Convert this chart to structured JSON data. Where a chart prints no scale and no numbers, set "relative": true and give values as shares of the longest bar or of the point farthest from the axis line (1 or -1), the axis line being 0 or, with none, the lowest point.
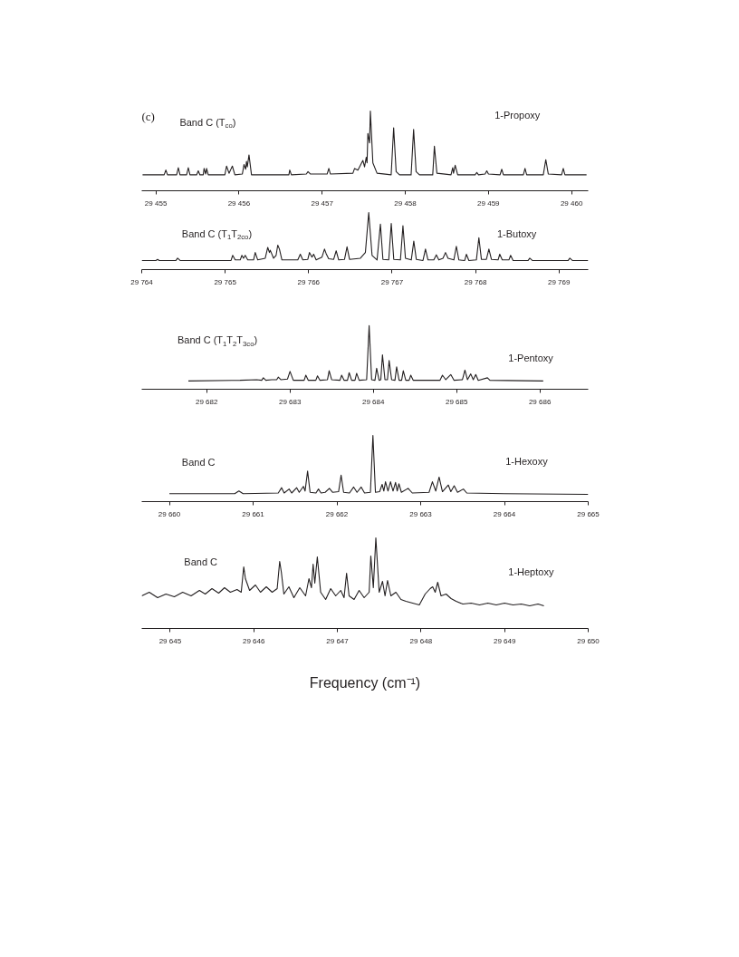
{
  "chart_data": [
    {
      "type": "line",
      "relative": true,
      "annotations": [
        "(c)",
        "Band C (T$_{co}$)"
      ],
      "xlim": [
        29454.83,
        29460.2
      ],
      "xticks": [
        {
          "value": 29455,
          "label": "29 455"
        },
        {
          "value": 29456,
          "label": "29 456"
        },
        {
          "value": 29457,
          "label": "29 457"
        },
        {
          "value": 29458,
          "label": "29 458"
        },
        {
          "value": 29459,
          "label": "29 459"
        },
        {
          "value": 29460,
          "label": "29 460"
        }
      ],
      "x": [
        29454.84,
        29455.1,
        29455.12,
        29455.14,
        29455.25,
        29455.27,
        29455.29,
        29455.37,
        29455.39,
        29455.41,
        29455.49,
        29455.51,
        29455.53,
        29455.57,
        29455.58,
        29455.6,
        29455.61,
        29455.63,
        29455.83,
        29455.85,
        29455.88,
        29455.92,
        29455.95,
        29456.04,
        29456.06,
        29456.08,
        29456.09,
        29456.1,
        29456.12,
        29456.15,
        29456.6,
        29456.61,
        29456.63,
        29456.81,
        29456.83,
        29456.86,
        29457.06,
        29457.08,
        29457.1,
        29457.37,
        29457.39,
        29457.43,
        29457.49,
        29457.51,
        29457.53,
        29457.54,
        29457.55,
        29457.57,
        29457.58,
        29457.61,
        29457.66,
        29457.83,
        29457.86,
        29457.89,
        29457.93,
        29458.07,
        29458.1,
        29458.13,
        29458.17,
        29458.33,
        29458.35,
        29458.38,
        29458.55,
        29458.57,
        29458.58,
        29458.6,
        29458.63,
        29458.84,
        29458.86,
        29458.88,
        29458.96,
        29458.98,
        29459.0,
        29459.14,
        29459.16,
        29459.18,
        29459.42,
        29459.44,
        29459.46,
        29459.66,
        29459.69,
        29459.72,
        29459.88,
        29459.9,
        29459.92,
        29460.18
      ],
      "series": [
        {
          "name": "1-Propoxy",
          "color": "#231f20",
          "values": [
            0.2,
            0.2,
            0.26,
            0.2,
            0.2,
            0.29,
            0.2,
            0.2,
            0.29,
            0.2,
            0.2,
            0.25,
            0.2,
            0.2,
            0.28,
            0.21,
            0.28,
            0.2,
            0.2,
            0.31,
            0.22,
            0.31,
            0.2,
            0.21,
            0.33,
            0.27,
            0.37,
            0.3,
            0.45,
            0.2,
            0.2,
            0.26,
            0.2,
            0.21,
            0.24,
            0.21,
            0.21,
            0.28,
            0.21,
            0.22,
            0.28,
            0.26,
            0.38,
            0.3,
            0.42,
            0.35,
            0.72,
            0.6,
            1.0,
            0.35,
            0.22,
            0.2,
            0.79,
            0.24,
            0.2,
            0.2,
            0.77,
            0.24,
            0.2,
            0.2,
            0.56,
            0.22,
            0.2,
            0.29,
            0.22,
            0.32,
            0.2,
            0.2,
            0.23,
            0.2,
            0.21,
            0.25,
            0.21,
            0.2,
            0.27,
            0.2,
            0.2,
            0.28,
            0.2,
            0.2,
            0.39,
            0.21,
            0.2,
            0.28,
            0.2,
            0.2
          ]
        }
      ]
    },
    {
      "type": "line",
      "relative": true,
      "annotations": [
        "Band C (T$_{1}$T$_{2co}$)"
      ],
      "xlim": [
        29764,
        29769.35
      ],
      "xticks": [
        {
          "value": 29764,
          "label": "29 764"
        },
        {
          "value": 29765,
          "label": "29 765"
        },
        {
          "value": 29766,
          "label": "29 766"
        },
        {
          "value": 29767,
          "label": "29 767"
        },
        {
          "value": 29768,
          "label": "29 768"
        },
        {
          "value": 29769,
          "label": "29 769"
        }
      ],
      "x": [
        29764.0,
        29764.17,
        29764.19,
        29764.21,
        29764.41,
        29764.43,
        29764.46,
        29764.8,
        29765.07,
        29765.09,
        29765.12,
        29765.18,
        29765.2,
        29765.22,
        29765.24,
        29765.27,
        29765.34,
        29765.36,
        29765.39,
        29765.48,
        29765.51,
        29765.53,
        29765.54,
        29765.58,
        29765.61,
        29765.63,
        29765.65,
        29765.68,
        29765.87,
        29765.9,
        29765.93,
        29765.99,
        29766.01,
        29766.04,
        29766.06,
        29766.09,
        29766.16,
        29766.19,
        29766.21,
        29766.24,
        29766.3,
        29766.33,
        29766.36,
        29766.43,
        29766.46,
        29766.49,
        29766.62,
        29766.68,
        29766.72,
        29766.76,
        29766.82,
        29766.86,
        29766.89,
        29766.96,
        29766.99,
        29767.02,
        29767.1,
        29767.13,
        29767.16,
        29767.23,
        29767.26,
        29767.29,
        29767.37,
        29767.4,
        29767.43,
        29767.5,
        29767.53,
        29767.56,
        29767.61,
        29767.64,
        29767.67,
        29767.74,
        29767.77,
        29767.8,
        29767.87,
        29767.89,
        29767.92,
        29768.01,
        29768.04,
        29768.07,
        29768.13,
        29768.16,
        29768.19,
        29768.27,
        29768.29,
        29768.32,
        29768.4,
        29768.42,
        29768.45,
        29768.63,
        29768.65,
        29768.68,
        29769.11,
        29769.13,
        29769.16,
        29769.35
      ],
      "series": [
        {
          "name": "1-Butoxy",
          "color": "#231f20",
          "values": [
            0.16,
            0.16,
            0.18,
            0.16,
            0.16,
            0.2,
            0.16,
            0.16,
            0.16,
            0.25,
            0.17,
            0.17,
            0.25,
            0.2,
            0.25,
            0.17,
            0.17,
            0.3,
            0.17,
            0.2,
            0.39,
            0.3,
            0.34,
            0.2,
            0.25,
            0.43,
            0.36,
            0.17,
            0.17,
            0.27,
            0.17,
            0.18,
            0.3,
            0.22,
            0.27,
            0.17,
            0.22,
            0.36,
            0.28,
            0.19,
            0.18,
            0.33,
            0.17,
            0.18,
            0.4,
            0.18,
            0.2,
            0.3,
            1.0,
            0.25,
            0.17,
            0.8,
            0.18,
            0.17,
            0.81,
            0.18,
            0.17,
            0.77,
            0.2,
            0.17,
            0.5,
            0.18,
            0.16,
            0.36,
            0.17,
            0.17,
            0.26,
            0.17,
            0.2,
            0.3,
            0.2,
            0.17,
            0.41,
            0.17,
            0.16,
            0.27,
            0.16,
            0.17,
            0.56,
            0.18,
            0.18,
            0.36,
            0.18,
            0.17,
            0.27,
            0.17,
            0.17,
            0.25,
            0.16,
            0.16,
            0.2,
            0.16,
            0.16,
            0.2,
            0.16,
            0.16
          ]
        }
      ]
    },
    {
      "type": "line",
      "relative": true,
      "annotations": [
        "Band C (T$_{1}$T$_{2}$T$_{3co}$)"
      ],
      "xlim": [
        29681.22,
        29686.58
      ],
      "xticks": [
        {
          "value": 29682,
          "label": "29 682"
        },
        {
          "value": 29683,
          "label": "29 683"
        },
        {
          "value": 29684,
          "label": "29 684"
        },
        {
          "value": 29685,
          "label": "29 685"
        },
        {
          "value": 29686,
          "label": "29 686"
        }
      ],
      "x": [
        29681.78,
        29682.4,
        29682.6,
        29682.66,
        29682.68,
        29682.71,
        29682.78,
        29682.84,
        29682.86,
        29682.89,
        29682.97,
        29683.0,
        29683.04,
        29683.17,
        29683.19,
        29683.22,
        29683.31,
        29683.33,
        29683.36,
        29683.45,
        29683.47,
        29683.5,
        29683.6,
        29683.62,
        29683.65,
        29683.69,
        29683.71,
        29683.74,
        29683.78,
        29683.8,
        29683.83,
        29683.92,
        29683.95,
        29683.98,
        29684.02,
        29684.04,
        29684.07,
        29684.09,
        29684.11,
        29684.14,
        29684.17,
        29684.19,
        29684.22,
        29684.26,
        29684.28,
        29684.31,
        29684.34,
        29684.36,
        29684.39,
        29684.43,
        29684.45,
        29684.48,
        29684.8,
        29684.83,
        29684.87,
        29684.93,
        29684.97,
        29685.07,
        29685.1,
        29685.13,
        29685.17,
        29685.2,
        29685.23,
        29685.26,
        29685.37,
        29685.4,
        29686.04
      ],
      "series": [
        {
          "name": "1-Pentoxy",
          "color": "#231f20",
          "values": [
            0.13,
            0.14,
            0.15,
            0.14,
            0.18,
            0.14,
            0.15,
            0.15,
            0.19,
            0.15,
            0.16,
            0.28,
            0.14,
            0.14,
            0.22,
            0.14,
            0.14,
            0.21,
            0.14,
            0.15,
            0.29,
            0.15,
            0.14,
            0.22,
            0.14,
            0.14,
            0.26,
            0.14,
            0.14,
            0.25,
            0.14,
            0.15,
            1.0,
            0.15,
            0.14,
            0.33,
            0.14,
            0.15,
            0.54,
            0.15,
            0.15,
            0.45,
            0.15,
            0.14,
            0.35,
            0.14,
            0.14,
            0.29,
            0.14,
            0.14,
            0.22,
            0.14,
            0.14,
            0.22,
            0.15,
            0.23,
            0.14,
            0.15,
            0.3,
            0.15,
            0.24,
            0.15,
            0.23,
            0.14,
            0.18,
            0.14,
            0.13
          ]
        }
      ]
    },
    {
      "type": "line",
      "relative": true,
      "annotations": [
        "Band C"
      ],
      "xlim": [
        29659.67,
        29665
      ],
      "xticks": [
        {
          "value": 29660,
          "label": "29 660"
        },
        {
          "value": 29661,
          "label": "29 661"
        },
        {
          "value": 29662,
          "label": "29 662"
        },
        {
          "value": 29663,
          "label": "29 663"
        },
        {
          "value": 29664,
          "label": "29 664"
        },
        {
          "value": 29665,
          "label": "29 665"
        }
      ],
      "x": [
        29660.0,
        29660.78,
        29660.83,
        29660.88,
        29661.3,
        29661.34,
        29661.37,
        29661.43,
        29661.46,
        29661.52,
        29661.55,
        29661.6,
        29661.62,
        29661.65,
        29661.68,
        29661.75,
        29661.78,
        29661.81,
        29661.86,
        29661.91,
        29661.95,
        29662.02,
        29662.05,
        29662.08,
        29662.15,
        29662.2,
        29662.24,
        29662.29,
        29662.33,
        29662.4,
        29662.43,
        29662.46,
        29662.51,
        29662.54,
        29662.56,
        29662.58,
        29662.61,
        29662.64,
        29662.67,
        29662.7,
        29662.72,
        29662.74,
        29662.77,
        29662.85,
        29662.9,
        29663.1,
        29663.14,
        29663.18,
        29663.22,
        29663.26,
        29663.33,
        29663.36,
        29663.4,
        29663.44,
        29663.51,
        29663.55,
        29664.0,
        29665.0
      ],
      "series": [
        {
          "name": "1-Hexoxy",
          "color": "#231f20",
          "values": [
            0.12,
            0.12,
            0.16,
            0.12,
            0.13,
            0.21,
            0.13,
            0.19,
            0.13,
            0.21,
            0.14,
            0.23,
            0.16,
            0.46,
            0.14,
            0.13,
            0.19,
            0.13,
            0.14,
            0.2,
            0.14,
            0.15,
            0.4,
            0.14,
            0.13,
            0.22,
            0.14,
            0.22,
            0.13,
            0.14,
            1.0,
            0.14,
            0.15,
            0.26,
            0.16,
            0.3,
            0.16,
            0.3,
            0.16,
            0.29,
            0.16,
            0.27,
            0.14,
            0.2,
            0.13,
            0.14,
            0.3,
            0.16,
            0.37,
            0.15,
            0.25,
            0.15,
            0.24,
            0.14,
            0.19,
            0.13,
            0.12,
            0.11
          ]
        }
      ]
    },
    {
      "type": "line",
      "relative": true,
      "annotations": [
        "Band C"
      ],
      "xlabel": "Frequency (cm⁻¹)",
      "xlim": [
        29644.66,
        29650
      ],
      "xticks": [
        {
          "value": 29645,
          "label": "29 645"
        },
        {
          "value": 29646,
          "label": "29 646"
        },
        {
          "value": 29647,
          "label": "29 647"
        },
        {
          "value": 29648,
          "label": "29 648"
        },
        {
          "value": 29649,
          "label": "29 649"
        },
        {
          "value": 29650,
          "label": "29 650"
        }
      ],
      "x": [
        29644.66,
        29644.75,
        29644.85,
        29644.95,
        29645.05,
        29645.15,
        29645.25,
        29645.35,
        29645.42,
        29645.5,
        29645.58,
        29645.65,
        29645.72,
        29645.8,
        29645.85,
        29645.88,
        29645.9,
        29645.95,
        29646.02,
        29646.08,
        29646.15,
        29646.22,
        29646.28,
        29646.31,
        29646.33,
        29646.36,
        29646.42,
        29646.48,
        29646.55,
        29646.62,
        29646.66,
        29646.69,
        29646.71,
        29646.73,
        29646.76,
        29646.8,
        29646.86,
        29646.92,
        29646.98,
        29647.04,
        29647.08,
        29647.11,
        29647.14,
        29647.2,
        29647.26,
        29647.32,
        29647.38,
        29647.4,
        29647.43,
        29647.46,
        29647.5,
        29647.54,
        29647.57,
        29647.6,
        29647.64,
        29647.7,
        29647.76,
        29647.82,
        29647.9,
        29647.98,
        29648.05,
        29648.11,
        29648.14,
        29648.17,
        29648.2,
        29648.24,
        29648.3,
        29648.36,
        29648.42,
        29648.5,
        29648.6,
        29648.7,
        29648.8,
        29648.9,
        29649.0,
        29649.1,
        29649.2,
        29649.3,
        29649.4,
        29649.47
      ],
      "series": [
        {
          "name": "1-Heptoxy",
          "color": "#231f20",
          "values": [
            0.36,
            0.4,
            0.34,
            0.38,
            0.35,
            0.4,
            0.36,
            0.42,
            0.38,
            0.44,
            0.39,
            0.45,
            0.4,
            0.43,
            0.4,
            0.68,
            0.55,
            0.42,
            0.48,
            0.4,
            0.46,
            0.4,
            0.44,
            0.74,
            0.62,
            0.38,
            0.46,
            0.34,
            0.45,
            0.36,
            0.55,
            0.45,
            0.71,
            0.5,
            0.79,
            0.4,
            0.32,
            0.44,
            0.36,
            0.42,
            0.34,
            0.61,
            0.36,
            0.32,
            0.42,
            0.34,
            0.4,
            0.8,
            0.45,
            1.0,
            0.4,
            0.52,
            0.36,
            0.53,
            0.36,
            0.4,
            0.32,
            0.3,
            0.28,
            0.26,
            0.38,
            0.44,
            0.46,
            0.4,
            0.51,
            0.36,
            0.38,
            0.33,
            0.3,
            0.27,
            0.28,
            0.26,
            0.28,
            0.26,
            0.28,
            0.26,
            0.27,
            0.25,
            0.27,
            0.25
          ]
        }
      ]
    }
  ]
}
